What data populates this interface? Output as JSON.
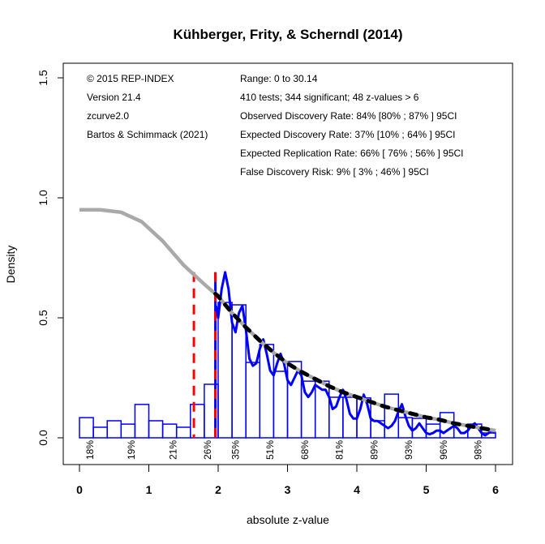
{
  "chart_data": {
    "type": "bar",
    "title": "Kühberger, Frity, & Scherndl (2014)",
    "xlabel": "absolute z-value",
    "ylabel": "Density",
    "xlim": [
      0,
      6
    ],
    "ylim": [
      0,
      1.5
    ],
    "x_ticks": [
      "0",
      "1",
      "2",
      "3",
      "4",
      "5",
      "6"
    ],
    "y_ticks": [
      "0.0",
      "0.5",
      "1.0",
      "1.5"
    ],
    "bin_width": 0.2,
    "bin_starts": [
      0.0,
      0.2,
      0.4,
      0.6,
      0.8,
      1.0,
      1.2,
      1.4,
      1.6,
      1.8,
      2.0,
      2.2,
      2.4,
      2.6,
      2.8,
      3.0,
      3.2,
      3.4,
      3.6,
      3.8,
      4.0,
      4.2,
      4.4,
      4.6,
      4.8,
      5.0,
      5.2,
      5.4,
      5.6,
      5.8
    ],
    "values": [
      0.084,
      0.044,
      0.071,
      0.057,
      0.139,
      0.071,
      0.057,
      0.044,
      0.139,
      0.223,
      0.564,
      0.554,
      0.314,
      0.389,
      0.277,
      0.318,
      0.236,
      0.236,
      0.169,
      0.169,
      0.166,
      0.071,
      0.182,
      0.084,
      0.081,
      0.057,
      0.105,
      0.054,
      0.057,
      0.02
    ],
    "power_labels": [
      {
        "x": 0.15,
        "label": "18%"
      },
      {
        "x": 0.75,
        "label": "19%"
      },
      {
        "x": 1.35,
        "label": "21%"
      },
      {
        "x": 1.85,
        "label": "26%"
      },
      {
        "x": 2.25,
        "label": "35%"
      },
      {
        "x": 2.75,
        "label": "51%"
      },
      {
        "x": 3.25,
        "label": "68%"
      },
      {
        "x": 3.75,
        "label": "81%"
      },
      {
        "x": 4.25,
        "label": "89%"
      },
      {
        "x": 4.75,
        "label": "93%"
      },
      {
        "x": 5.25,
        "label": "96%"
      },
      {
        "x": 5.75,
        "label": "98%"
      }
    ],
    "fitted_curve": {
      "name": "z-curve fit",
      "x": [
        0.0,
        0.3,
        0.6,
        0.9,
        1.2,
        1.5,
        1.8,
        2.0,
        2.2,
        2.4,
        2.6,
        2.8,
        3.0,
        3.2,
        3.4,
        3.6,
        3.8,
        4.0,
        4.2,
        4.4,
        4.6,
        4.8,
        5.0,
        5.2,
        5.4,
        5.6,
        5.8,
        6.0
      ],
      "y": [
        0.95,
        0.95,
        0.94,
        0.9,
        0.82,
        0.72,
        0.64,
        0.59,
        0.52,
        0.46,
        0.405,
        0.355,
        0.31,
        0.275,
        0.245,
        0.215,
        0.19,
        0.17,
        0.15,
        0.13,
        0.115,
        0.1,
        0.085,
        0.075,
        0.06,
        0.05,
        0.04,
        0.03
      ]
    },
    "density_curve": {
      "name": "kernel density",
      "x": [
        1.97,
        2.0,
        2.05,
        2.1,
        2.15,
        2.2,
        2.25,
        2.3,
        2.35,
        2.4,
        2.45,
        2.5,
        2.55,
        2.6,
        2.65,
        2.7,
        2.75,
        2.8,
        2.85,
        2.9,
        2.95,
        3.0,
        3.05,
        3.1,
        3.15,
        3.2,
        3.25,
        3.3,
        3.35,
        3.4,
        3.45,
        3.5,
        3.55,
        3.6,
        3.65,
        3.7,
        3.75,
        3.8,
        3.85,
        3.9,
        3.95,
        4.0,
        4.05,
        4.1,
        4.15,
        4.2,
        4.25,
        4.3,
        4.35,
        4.4,
        4.45,
        4.5,
        4.55,
        4.6,
        4.65,
        4.7,
        4.75,
        4.8,
        4.85,
        4.9,
        4.95,
        5.0,
        5.05,
        5.1,
        5.15,
        5.2,
        5.25,
        5.3,
        5.35,
        5.4,
        5.45,
        5.5,
        5.55,
        5.6,
        5.65,
        5.7,
        5.75,
        5.8,
        5.85,
        5.9,
        5.95,
        6.0
      ],
      "y": [
        0.55,
        0.5,
        0.62,
        0.69,
        0.62,
        0.48,
        0.44,
        0.52,
        0.55,
        0.45,
        0.33,
        0.3,
        0.31,
        0.37,
        0.41,
        0.35,
        0.28,
        0.26,
        0.31,
        0.35,
        0.31,
        0.24,
        0.22,
        0.25,
        0.28,
        0.26,
        0.19,
        0.17,
        0.19,
        0.22,
        0.21,
        0.2,
        0.2,
        0.17,
        0.12,
        0.13,
        0.17,
        0.2,
        0.16,
        0.1,
        0.08,
        0.08,
        0.12,
        0.18,
        0.14,
        0.08,
        0.07,
        0.07,
        0.06,
        0.05,
        0.04,
        0.05,
        0.07,
        0.11,
        0.14,
        0.09,
        0.05,
        0.03,
        0.04,
        0.06,
        0.04,
        0.02,
        0.015,
        0.02,
        0.03,
        0.03,
        0.02,
        0.03,
        0.04,
        0.05,
        0.04,
        0.02,
        0.02,
        0.03,
        0.05,
        0.06,
        0.04,
        0.02,
        0.01,
        0.02,
        0.03,
        0.02
      ]
    },
    "vlines": [
      {
        "name": "significance-threshold",
        "x": 1.96,
        "color": "#ff0000"
      },
      {
        "name": "selection-start",
        "x": 1.96,
        "color": "#0000ff"
      },
      {
        "name": "marginal-threshold",
        "x": 1.65,
        "color": "#ff0000"
      }
    ],
    "grid": false,
    "colors": {
      "bars": "#0000ff",
      "density": "#0000ff",
      "fit": "#a9a9a9",
      "fit_dash": "#000000",
      "threshold": "#ff0000"
    }
  },
  "info_left": [
    "© 2015 REP-INDEX",
    "Version 21.4",
    "zcurve2.0",
    "Bartos & Schimmack (2021)"
  ],
  "info_right": [
    "Range: 0 to 30.14",
    "410 tests; 344 significant; 48 z-values > 6",
    "Observed Discovery Rate: 84% [80% ; 87% ] 95CI",
    "Expected Discovery Rate: 37% [10% ; 64% ] 95CI",
    "Expected Replication Rate: 66% [ 76% ; 56% ] 95CI",
    "False Discovery Risk: 9% [ 3% ; 46% ] 95CI"
  ]
}
